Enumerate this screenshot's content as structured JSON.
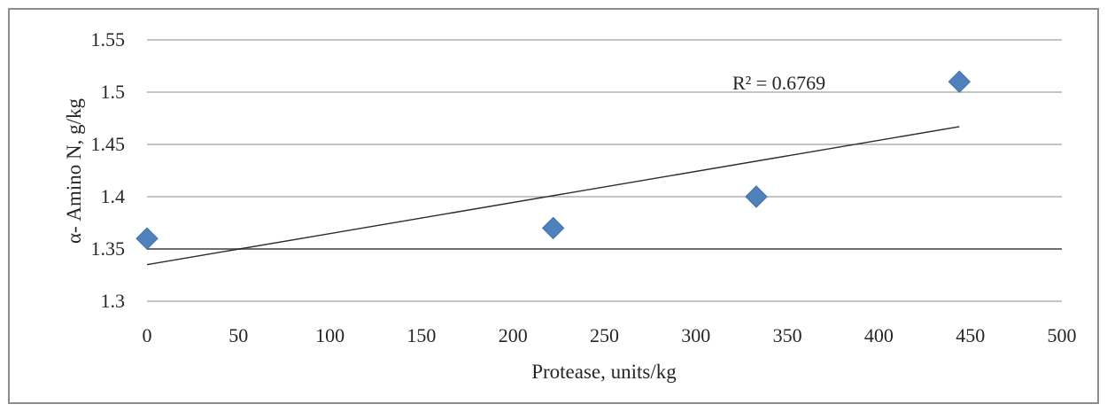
{
  "chart_data": {
    "type": "scatter",
    "title": "",
    "xlabel": "Protease, units/kg",
    "ylabel": "α- Amino N, g/kg",
    "xlim": [
      0,
      500
    ],
    "ylim": [
      1.3,
      1.55
    ],
    "xticks": [
      "0",
      "50",
      "100",
      "150",
      "200",
      "250",
      "300",
      "350",
      "400",
      "450",
      "500"
    ],
    "yticks": [
      "1.3",
      "1.35",
      "1.4",
      "1.45",
      "1.5",
      "1.55"
    ],
    "grid": "horizontal",
    "legend": "none",
    "marker": "diamond",
    "marker_color": "#4f81bd",
    "points": [
      {
        "x": 0,
        "y": 1.36
      },
      {
        "x": 222,
        "y": 1.37
      },
      {
        "x": 333,
        "y": 1.4
      },
      {
        "x": 444,
        "y": 1.51
      }
    ],
    "trendline": {
      "type": "linear",
      "start": {
        "x": 0,
        "y": 1.335
      },
      "end": {
        "x": 444,
        "y": 1.467
      },
      "r_squared_label": "R² = 0.6769"
    }
  }
}
